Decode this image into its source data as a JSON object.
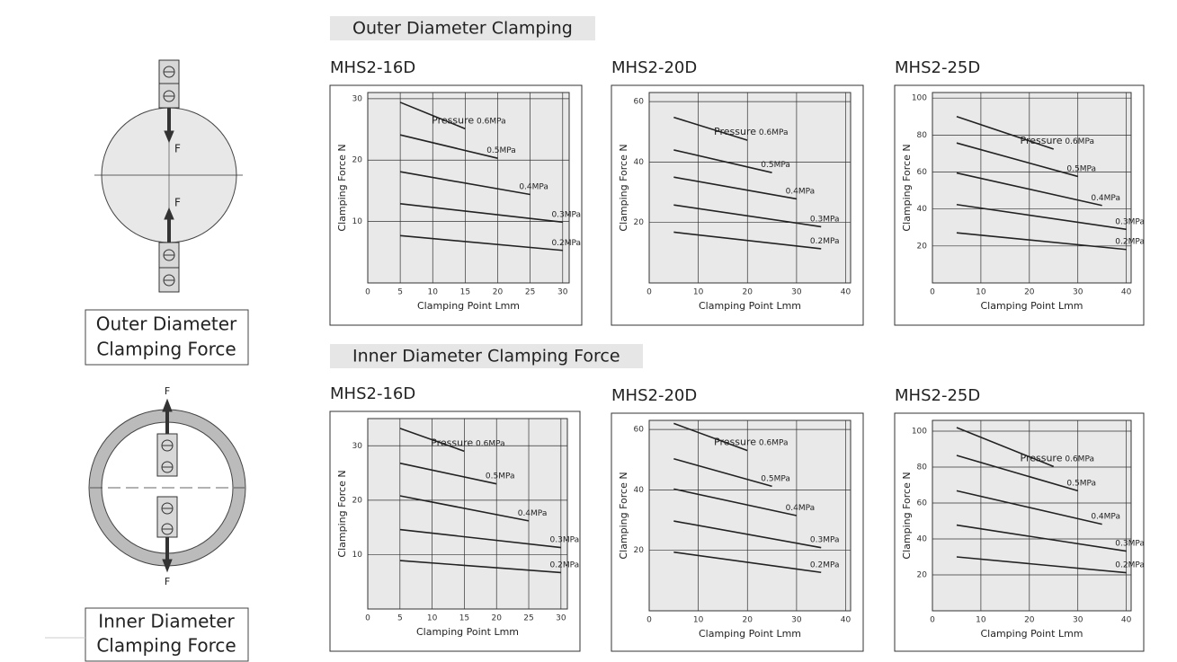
{
  "sections": [
    {
      "heading": "Outer Diameter Clamping",
      "diagram_label": [
        "Outer Diameter",
        "Clamping Force"
      ],
      "diagram_texts": [
        "F",
        "F"
      ]
    },
    {
      "heading": "Inner Diameter Clamping Force",
      "diagram_label": [
        "Inner Diameter",
        "Clamping Force"
      ],
      "diagram_texts": [
        "F",
        "F"
      ]
    }
  ],
  "chart_data": [
    {
      "type": "line",
      "title": "MHS2-16D",
      "x_label": "Clamping Point Lmm",
      "y_label": "Clamping Force N",
      "pressure_label": "Pressure",
      "xlim": [
        0,
        31
      ],
      "xticks": [
        0,
        5,
        10,
        15,
        20,
        25,
        30
      ],
      "ylim": [
        0,
        31
      ],
      "yticks": [
        10,
        20,
        30
      ],
      "grid": true,
      "series": [
        {
          "name": "0.6MPa",
          "color": "#222",
          "x": [
            5,
            15
          ],
          "values": [
            29.4,
            25.1
          ]
        },
        {
          "name": "0.5MPa",
          "color": "#222",
          "x": [
            5,
            20
          ],
          "values": [
            24.1,
            20.3
          ]
        },
        {
          "name": "0.4MPa",
          "color": "#222",
          "x": [
            5,
            25
          ],
          "values": [
            18.1,
            14.4
          ]
        },
        {
          "name": "0.3MPa",
          "color": "#222",
          "x": [
            5,
            30
          ],
          "values": [
            12.9,
            9.9
          ]
        },
        {
          "name": "0.2MPa",
          "color": "#222",
          "x": [
            5,
            30
          ],
          "values": [
            7.7,
            5.3
          ]
        }
      ]
    },
    {
      "type": "line",
      "title": "MHS2-20D",
      "x_label": "Clamping Point Lmm",
      "y_label": "Clamping Force N",
      "pressure_label": "Pressure",
      "xlim": [
        0,
        41
      ],
      "xticks": [
        0,
        10,
        20,
        30,
        40
      ],
      "ylim": [
        0,
        63
      ],
      "yticks": [
        20,
        40,
        60
      ],
      "grid": true,
      "series": [
        {
          "name": "0.6MPa",
          "color": "#222",
          "x": [
            5,
            20
          ],
          "values": [
            54.8,
            47.2
          ]
        },
        {
          "name": "0.5MPa",
          "color": "#222",
          "x": [
            5,
            25
          ],
          "values": [
            44,
            36.5
          ]
        },
        {
          "name": "0.4MPa",
          "color": "#222",
          "x": [
            5,
            30
          ],
          "values": [
            35,
            27.8
          ]
        },
        {
          "name": "0.3MPa",
          "color": "#222",
          "x": [
            5,
            35
          ],
          "values": [
            25.8,
            18.6
          ]
        },
        {
          "name": "0.2MPa",
          "color": "#222",
          "x": [
            5,
            35
          ],
          "values": [
            16.8,
            11.3
          ]
        }
      ]
    },
    {
      "type": "line",
      "title": "MHS2-25D",
      "x_label": "Clamping Point Lmm",
      "y_label": "Clamping Force N",
      "pressure_label": "Pressure",
      "xlim": [
        0,
        41
      ],
      "xticks": [
        0,
        10,
        20,
        30,
        40
      ],
      "ylim": [
        0,
        103
      ],
      "yticks": [
        20,
        40,
        60,
        80,
        100
      ],
      "grid": true,
      "series": [
        {
          "name": "0.6MPa",
          "color": "#222",
          "x": [
            5,
            25
          ],
          "values": [
            90,
            72.4
          ]
        },
        {
          "name": "0.5MPa",
          "color": "#222",
          "x": [
            5,
            30
          ],
          "values": [
            75.7,
            57.6
          ]
        },
        {
          "name": "0.4MPa",
          "color": "#222",
          "x": [
            5,
            35
          ],
          "values": [
            59.5,
            41.9
          ]
        },
        {
          "name": "0.3MPa",
          "color": "#222",
          "x": [
            5,
            40
          ],
          "values": [
            42.4,
            29
          ]
        },
        {
          "name": "0.2MPa",
          "color": "#222",
          "x": [
            5,
            40
          ],
          "values": [
            27.1,
            18.1
          ]
        }
      ]
    },
    {
      "type": "line",
      "title": "MHS2-16D",
      "x_label": "Clamping Point Lmm",
      "y_label": "Clamping Force N",
      "pressure_label": "Pressure",
      "xlim": [
        0,
        31
      ],
      "xticks": [
        0,
        5,
        10,
        15,
        20,
        25,
        30
      ],
      "ylim": [
        0,
        35
      ],
      "yticks": [
        10,
        20,
        30
      ],
      "grid": true,
      "series": [
        {
          "name": "0.6MPa",
          "color": "#222",
          "x": [
            5,
            15
          ],
          "values": [
            33.2,
            29
          ]
        },
        {
          "name": "0.5MPa",
          "color": "#222",
          "x": [
            5,
            20
          ],
          "values": [
            26.8,
            23
          ]
        },
        {
          "name": "0.4MPa",
          "color": "#222",
          "x": [
            5,
            25
          ],
          "values": [
            20.8,
            16.2
          ]
        },
        {
          "name": "0.3MPa",
          "color": "#222",
          "x": [
            5,
            30
          ],
          "values": [
            14.6,
            11.3
          ]
        },
        {
          "name": "0.2MPa",
          "color": "#222",
          "x": [
            5,
            30
          ],
          "values": [
            8.9,
            6.7
          ]
        }
      ]
    },
    {
      "type": "line",
      "title": "MHS2-20D",
      "x_label": "Clamping Point Lmm",
      "y_label": "Clamping Force N",
      "pressure_label": "Pressure",
      "xlim": [
        0,
        41
      ],
      "xticks": [
        0,
        10,
        20,
        30,
        40
      ],
      "ylim": [
        0,
        63
      ],
      "yticks": [
        20,
        40,
        60
      ],
      "grid": true,
      "series": [
        {
          "name": "0.6MPa",
          "color": "#222",
          "x": [
            5,
            20
          ],
          "values": [
            62,
            53
          ]
        },
        {
          "name": "0.5MPa",
          "color": "#222",
          "x": [
            5,
            25
          ],
          "values": [
            50.3,
            41.2
          ]
        },
        {
          "name": "0.4MPa",
          "color": "#222",
          "x": [
            5,
            30
          ],
          "values": [
            40.3,
            31.5
          ]
        },
        {
          "name": "0.3MPa",
          "color": "#222",
          "x": [
            5,
            35
          ],
          "values": [
            29.7,
            20.9
          ]
        },
        {
          "name": "0.2MPa",
          "color": "#222",
          "x": [
            5,
            35
          ],
          "values": [
            19.4,
            12.7
          ]
        }
      ]
    },
    {
      "type": "line",
      "title": "MHS2-25D",
      "x_label": "Clamping Point Lmm",
      "y_label": "Clamping Force N",
      "pressure_label": "Pressure",
      "xlim": [
        0,
        41
      ],
      "xticks": [
        0,
        10,
        20,
        30,
        40
      ],
      "ylim": [
        0,
        106
      ],
      "yticks": [
        20,
        40,
        60,
        80,
        100
      ],
      "grid": true,
      "series": [
        {
          "name": "0.6MPa",
          "color": "#222",
          "x": [
            5,
            25
          ],
          "values": [
            102,
            80.3
          ]
        },
        {
          "name": "0.5MPa",
          "color": "#222",
          "x": [
            5,
            30
          ],
          "values": [
            86.5,
            66.8
          ]
        },
        {
          "name": "0.4MPa",
          "color": "#222",
          "x": [
            5,
            35
          ],
          "values": [
            66.8,
            48.2
          ]
        },
        {
          "name": "0.3MPa",
          "color": "#222",
          "x": [
            5,
            40
          ],
          "values": [
            47.7,
            33.2
          ]
        },
        {
          "name": "0.2MPa",
          "color": "#222",
          "x": [
            5,
            40
          ],
          "values": [
            30,
            21.2
          ]
        }
      ]
    }
  ]
}
